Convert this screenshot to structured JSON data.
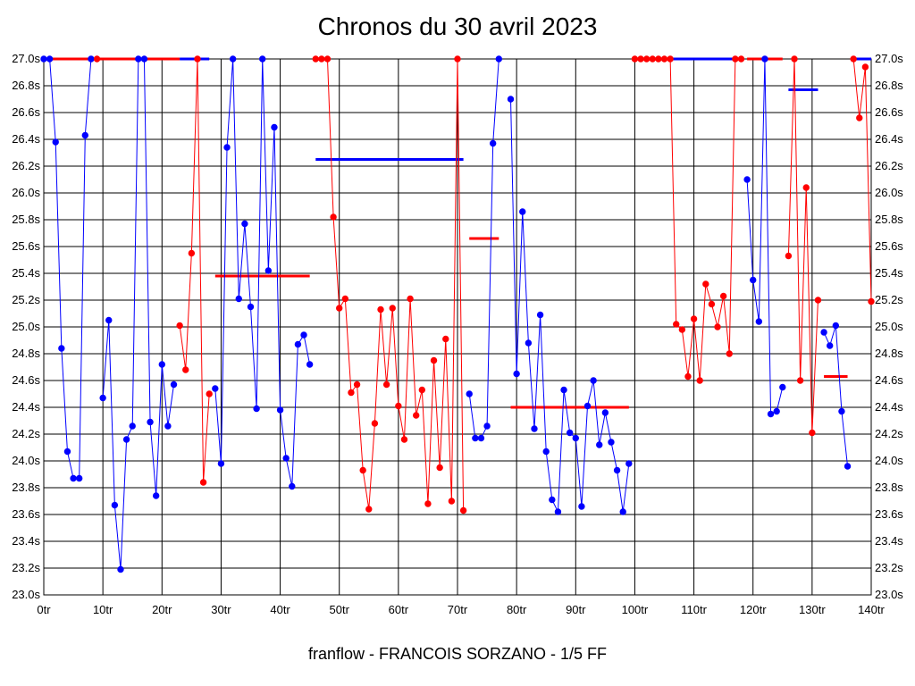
{
  "title": "Chronos du 30 avril 2023",
  "footer": "franflow - FRANCOIS SORZANO - 1/5 FF",
  "colors": {
    "blue": "#0000ff",
    "red": "#ff0000",
    "grid": "#000000"
  },
  "chart_data": {
    "type": "line",
    "title": "Chronos du 30 avril 2023",
    "xlabel": "",
    "ylabel": "",
    "xlim": [
      0,
      140
    ],
    "ylim": [
      23.0,
      27.0
    ],
    "grid": true,
    "x_ticks": [
      {
        "v": 0,
        "label": "0tr"
      },
      {
        "v": 10,
        "label": "10tr"
      },
      {
        "v": 20,
        "label": "20tr"
      },
      {
        "v": 30,
        "label": "30tr"
      },
      {
        "v": 40,
        "label": "40tr"
      },
      {
        "v": 50,
        "label": "50tr"
      },
      {
        "v": 60,
        "label": "60tr"
      },
      {
        "v": 70,
        "label": "70tr"
      },
      {
        "v": 80,
        "label": "80tr"
      },
      {
        "v": 90,
        "label": "90tr"
      },
      {
        "v": 100,
        "label": "100tr"
      },
      {
        "v": 110,
        "label": "110tr"
      },
      {
        "v": 120,
        "label": "120tr"
      },
      {
        "v": 130,
        "label": "130tr"
      },
      {
        "v": 140,
        "label": "140tr"
      }
    ],
    "y_ticks": [
      {
        "v": 23.0,
        "label": "23.0s"
      },
      {
        "v": 23.2,
        "label": "23.2s"
      },
      {
        "v": 23.4,
        "label": "23.4s"
      },
      {
        "v": 23.6,
        "label": "23.6s"
      },
      {
        "v": 23.8,
        "label": "23.8s"
      },
      {
        "v": 24.0,
        "label": "24.0s"
      },
      {
        "v": 24.2,
        "label": "24.2s"
      },
      {
        "v": 24.4,
        "label": "24.4s"
      },
      {
        "v": 24.6,
        "label": "24.6s"
      },
      {
        "v": 24.8,
        "label": "24.8s"
      },
      {
        "v": 25.0,
        "label": "25.0s"
      },
      {
        "v": 25.2,
        "label": "25.2s"
      },
      {
        "v": 25.4,
        "label": "25.4s"
      },
      {
        "v": 25.6,
        "label": "25.6s"
      },
      {
        "v": 25.8,
        "label": "25.8s"
      },
      {
        "v": 26.0,
        "label": "26.0s"
      },
      {
        "v": 26.2,
        "label": "26.2s"
      },
      {
        "v": 26.4,
        "label": "26.4s"
      },
      {
        "v": 26.6,
        "label": "26.6s"
      },
      {
        "v": 26.8,
        "label": "26.8s"
      },
      {
        "v": 27.0,
        "label": "27.0s"
      }
    ],
    "series": [
      {
        "color": "blue",
        "points": [
          [
            0,
            27.0
          ],
          [
            1,
            27.0
          ],
          [
            2,
            26.38
          ],
          [
            3,
            24.84
          ],
          [
            4,
            24.07
          ],
          [
            5,
            23.87
          ],
          [
            6,
            23.87
          ],
          [
            7,
            26.43
          ],
          [
            8,
            27.0
          ]
        ]
      },
      {
        "color": "red",
        "points": [
          [
            9,
            27.0
          ]
        ]
      },
      {
        "color": "blue",
        "points": [
          [
            10,
            24.47
          ],
          [
            11,
            25.05
          ],
          [
            12,
            23.67
          ],
          [
            13,
            23.19
          ],
          [
            14,
            24.16
          ],
          [
            15,
            24.26
          ],
          [
            16,
            27.0
          ],
          [
            17,
            27.0
          ],
          [
            18,
            24.29
          ],
          [
            19,
            23.74
          ],
          [
            20,
            24.72
          ],
          [
            21,
            24.26
          ],
          [
            22,
            24.57
          ]
        ]
      },
      {
        "color": "red",
        "points": [
          [
            23,
            25.01
          ],
          [
            24,
            24.68
          ],
          [
            25,
            25.55
          ],
          [
            26,
            27.0
          ],
          [
            27,
            23.84
          ],
          [
            28,
            24.5
          ]
        ]
      },
      {
        "color": "blue",
        "points": [
          [
            29,
            24.54
          ],
          [
            30,
            23.98
          ],
          [
            31,
            26.34
          ],
          [
            32,
            27.0
          ],
          [
            33,
            25.21
          ],
          [
            34,
            25.77
          ],
          [
            35,
            25.15
          ],
          [
            36,
            24.39
          ],
          [
            37,
            27.0
          ],
          [
            38,
            25.42
          ],
          [
            39,
            26.49
          ],
          [
            40,
            24.38
          ],
          [
            41,
            24.02
          ],
          [
            42,
            23.81
          ],
          [
            43,
            24.87
          ],
          [
            44,
            24.94
          ],
          [
            45,
            24.72
          ]
        ]
      },
      {
        "color": "red",
        "points": [
          [
            46,
            27.0
          ],
          [
            47,
            27.0
          ],
          [
            48,
            27.0
          ],
          [
            49,
            25.82
          ],
          [
            50,
            25.14
          ],
          [
            51,
            25.21
          ],
          [
            52,
            24.51
          ],
          [
            53,
            24.57
          ],
          [
            54,
            23.93
          ],
          [
            55,
            23.64
          ],
          [
            56,
            24.28
          ],
          [
            57,
            25.13
          ],
          [
            58,
            24.57
          ],
          [
            59,
            25.14
          ],
          [
            60,
            24.41
          ],
          [
            61,
            24.16
          ],
          [
            62,
            25.21
          ],
          [
            63,
            24.34
          ],
          [
            64,
            24.53
          ],
          [
            65,
            23.68
          ],
          [
            66,
            24.75
          ],
          [
            67,
            23.95
          ],
          [
            68,
            24.91
          ],
          [
            69,
            23.7
          ],
          [
            70,
            27.0
          ],
          [
            71,
            23.63
          ]
        ]
      },
      {
        "color": "blue",
        "points": [
          [
            72,
            24.5
          ],
          [
            73,
            24.17
          ],
          [
            74,
            24.17
          ],
          [
            75,
            24.26
          ],
          [
            76,
            26.37
          ],
          [
            77,
            27.0
          ]
        ]
      },
      {
        "color": "blue",
        "points": [
          [
            79,
            26.7
          ],
          [
            80,
            24.65
          ],
          [
            81,
            25.86
          ],
          [
            82,
            24.88
          ],
          [
            83,
            24.24
          ],
          [
            84,
            25.09
          ],
          [
            85,
            24.07
          ],
          [
            86,
            23.71
          ],
          [
            87,
            23.62
          ],
          [
            88,
            24.53
          ],
          [
            89,
            24.21
          ],
          [
            90,
            24.17
          ],
          [
            91,
            23.66
          ],
          [
            92,
            24.41
          ],
          [
            93,
            24.6
          ],
          [
            94,
            24.12
          ],
          [
            95,
            24.36
          ],
          [
            96,
            24.14
          ],
          [
            97,
            23.93
          ],
          [
            98,
            23.62
          ],
          [
            99,
            23.98
          ]
        ]
      },
      {
        "color": "red",
        "points": [
          [
            100,
            27.0
          ],
          [
            101,
            27.0
          ],
          [
            102,
            27.0
          ],
          [
            103,
            27.0
          ],
          [
            104,
            27.0
          ],
          [
            105,
            27.0
          ],
          [
            106,
            27.0
          ],
          [
            107,
            25.02
          ],
          [
            108,
            24.98
          ],
          [
            109,
            24.63
          ],
          [
            110,
            25.06
          ],
          [
            111,
            24.6
          ],
          [
            112,
            25.32
          ],
          [
            113,
            25.17
          ],
          [
            114,
            25.0
          ],
          [
            115,
            25.23
          ],
          [
            116,
            24.8
          ],
          [
            117,
            27.0
          ],
          [
            118,
            27.0
          ]
        ]
      },
      {
        "color": "blue",
        "points": [
          [
            119,
            26.1
          ],
          [
            120,
            25.35
          ],
          [
            121,
            25.04
          ],
          [
            122,
            27.0
          ],
          [
            123,
            24.35
          ],
          [
            124,
            24.37
          ],
          [
            125,
            24.55
          ]
        ]
      },
      {
        "color": "red",
        "points": [
          [
            126,
            25.53
          ],
          [
            127,
            27.0
          ],
          [
            128,
            24.6
          ],
          [
            129,
            26.04
          ],
          [
            130,
            24.21
          ],
          [
            131,
            25.2
          ]
        ]
      },
      {
        "color": "blue",
        "points": [
          [
            132,
            24.96
          ],
          [
            133,
            24.86
          ],
          [
            134,
            25.01
          ],
          [
            135,
            24.37
          ],
          [
            136,
            23.96
          ]
        ]
      },
      {
        "color": "red",
        "points": [
          [
            137,
            27.0
          ],
          [
            138,
            26.56
          ],
          [
            139,
            26.94
          ],
          [
            140,
            25.19
          ]
        ]
      }
    ],
    "averages": [
      {
        "color": "red",
        "x1": 1,
        "x2": 23,
        "y": 27.0
      },
      {
        "color": "blue",
        "x1": 23,
        "x2": 28,
        "y": 27.0
      },
      {
        "color": "red",
        "x1": 29,
        "x2": 45,
        "y": 25.38
      },
      {
        "color": "blue",
        "x1": 46,
        "x2": 71,
        "y": 26.25
      },
      {
        "color": "red",
        "x1": 72,
        "x2": 77,
        "y": 25.66
      },
      {
        "color": "red",
        "x1": 79,
        "x2": 99,
        "y": 24.4
      },
      {
        "color": "blue",
        "x1": 106,
        "x2": 118,
        "y": 27.0
      },
      {
        "color": "red",
        "x1": 119,
        "x2": 125,
        "y": 27.0
      },
      {
        "color": "blue",
        "x1": 126,
        "x2": 131,
        "y": 26.77
      },
      {
        "color": "red",
        "x1": 132,
        "x2": 136,
        "y": 24.63
      },
      {
        "color": "blue",
        "x1": 137,
        "x2": 140,
        "y": 27.0
      }
    ]
  }
}
